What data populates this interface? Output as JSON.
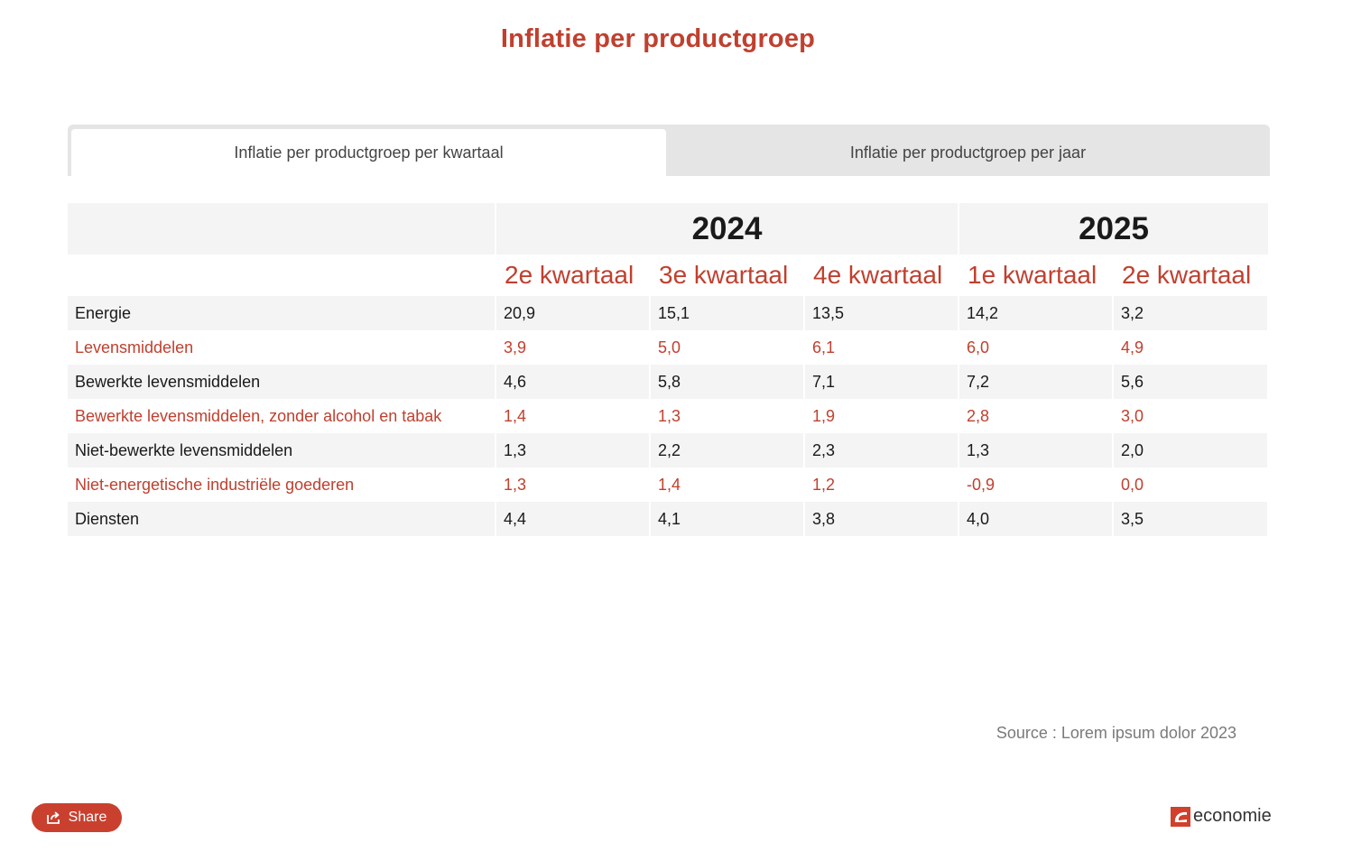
{
  "title": "Inflatie per productgroep",
  "tabs": [
    {
      "label": "Inflatie per productgroep per kwartaal",
      "active": true
    },
    {
      "label": "Inflatie per productgroep per jaar",
      "active": false
    }
  ],
  "table": {
    "years": [
      "2024",
      "2025"
    ],
    "quarters": [
      "2e kwartaal",
      "3e kwartaal",
      "4e kwartaal",
      "1e kwartaal",
      "2e kwartaal"
    ],
    "rows": [
      {
        "label": "Energie",
        "values": [
          "20,9",
          "15,1",
          "13,5",
          "14,2",
          "3,2"
        ]
      },
      {
        "label": "Levensmiddelen",
        "values": [
          "3,9",
          "5,0",
          "6,1",
          "6,0",
          "4,9"
        ]
      },
      {
        "label": "Bewerkte levensmiddelen",
        "values": [
          "4,6",
          "5,8",
          "7,1",
          "7,2",
          "5,6"
        ]
      },
      {
        "label": "Bewerkte levensmiddelen, zonder alcohol en tabak",
        "values": [
          "1,4",
          "1,3",
          "1,9",
          "2,8",
          "3,0"
        ]
      },
      {
        "label": "Niet-bewerkte levensmiddelen",
        "values": [
          "1,3",
          "2,2",
          "2,3",
          "1,3",
          "2,0"
        ]
      },
      {
        "label": "Niet-energetische industriële goederen",
        "values": [
          "1,3",
          "1,4",
          "1,2",
          "-0,9",
          "0,0"
        ]
      },
      {
        "label": "Diensten",
        "values": [
          "4,4",
          "4,1",
          "3,8",
          "4,0",
          "3,5"
        ]
      }
    ]
  },
  "source": "Source : Lorem ipsum dolor 2023",
  "share_label": "Share",
  "logo_text": "economie",
  "colors": {
    "accent": "#c0402f",
    "row_bg": "#f4f4f4",
    "tab_bg": "#e5e5e5"
  }
}
